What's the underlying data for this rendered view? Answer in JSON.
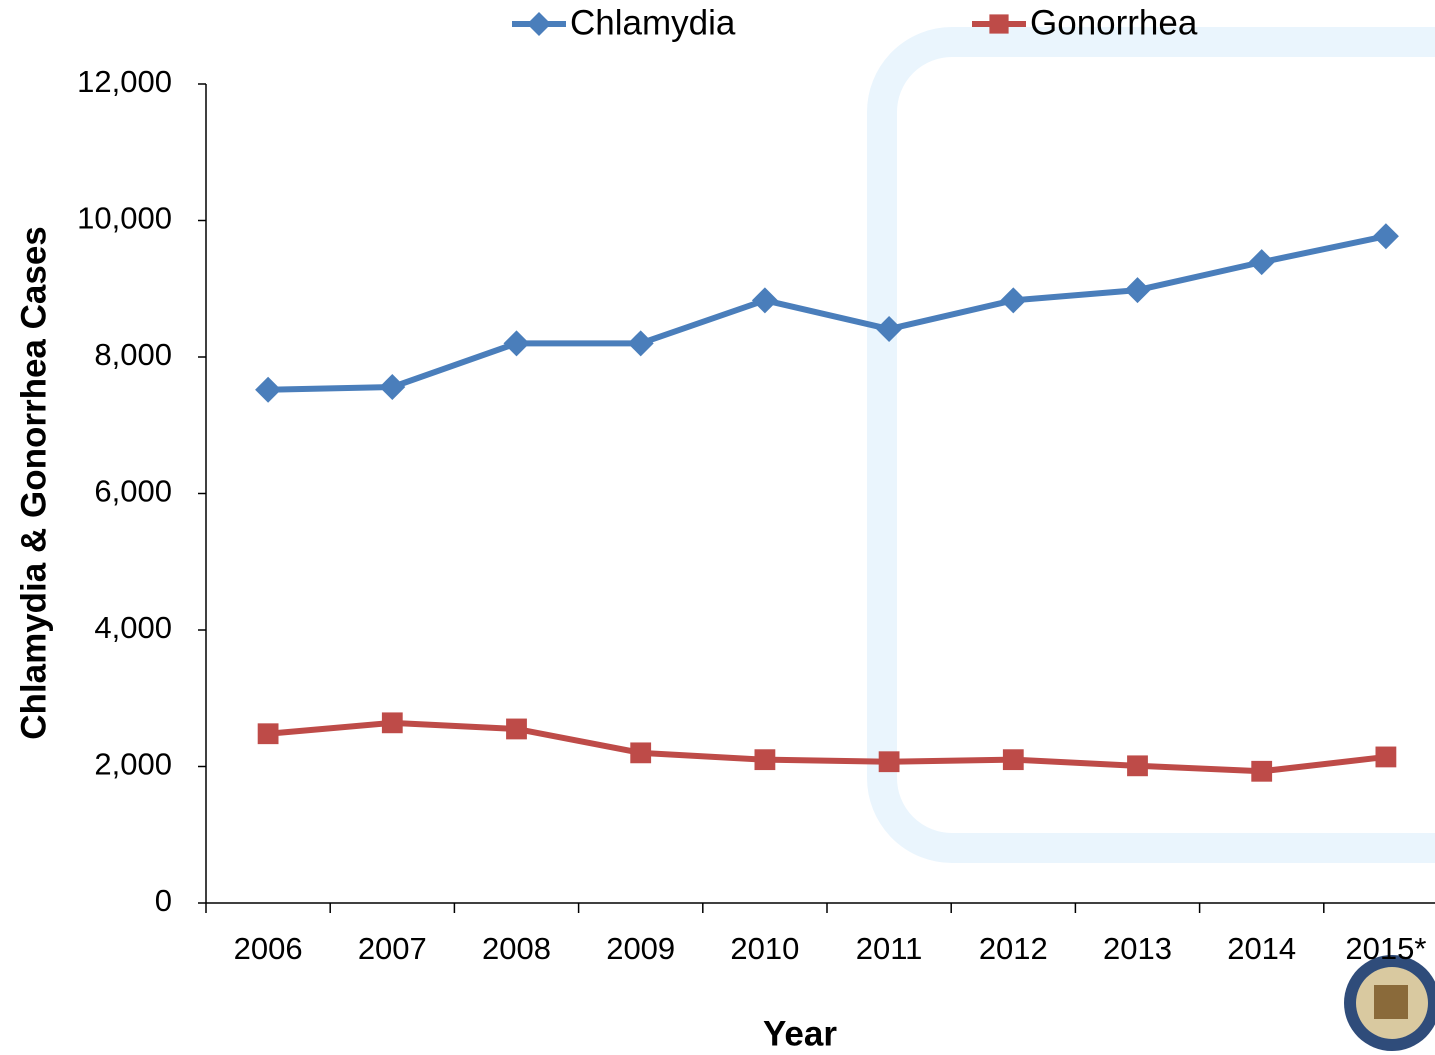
{
  "chart_data": {
    "type": "line",
    "x_label": "Year",
    "y_label": "Chlamydia & Gonorrhea Cases",
    "categories": [
      "2006",
      "2007",
      "2008",
      "2009",
      "2010",
      "2011",
      "2012",
      "2013",
      "2014",
      "2015*"
    ],
    "series": [
      {
        "name": "Chlamydia",
        "color": "#4a7ebb",
        "marker": "diamond",
        "values": [
          7520,
          7560,
          8200,
          8200,
          8830,
          8410,
          8830,
          8980,
          9390,
          9770
        ]
      },
      {
        "name": "Gonorrhea",
        "color": "#be4b48",
        "marker": "square",
        "values": [
          2480,
          2640,
          2550,
          2200,
          2100,
          2070,
          2100,
          2010,
          1930,
          2140
        ]
      }
    ],
    "ylim": [
      0,
      12000
    ],
    "yticks": [
      0,
      {
        "value": 2000,
        "label": "2,000"
      },
      {
        "value": 4000,
        "label": "4,000"
      },
      {
        "value": 6000,
        "label": "6,000"
      },
      {
        "value": 8000,
        "label": "8,000"
      },
      {
        "value": 10000,
        "label": "10,000"
      },
      {
        "value": 12000,
        "label": "12,000"
      }
    ],
    "legend": "top",
    "grid": false
  }
}
